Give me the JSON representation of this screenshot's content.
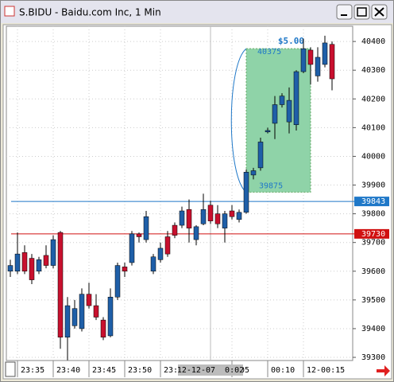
{
  "window": {
    "title": "S.BIDU - Baidu.com Inc, 1 Min"
  },
  "chart_data": {
    "type": "candlestick",
    "open": [
      39600,
      39600,
      39665,
      39645,
      39600,
      39655,
      39620,
      39735,
      39370,
      39410,
      39400,
      39520,
      39480,
      39430,
      39375,
      39510,
      39615,
      39630,
      39730,
      39710,
      39600,
      39640,
      39720,
      39760,
      39760,
      39815,
      39710,
      39765,
      39830,
      39800,
      39750,
      39810,
      39780,
      39805,
      39935,
      39960,
      40085,
      40115,
      40180,
      40120,
      40110,
      40295,
      40370,
      40280,
      40320,
      40390
    ],
    "high": [
      39640,
      39735,
      39690,
      39660,
      39650,
      39690,
      39725,
      39740,
      39510,
      39500,
      39540,
      39560,
      39520,
      39440,
      39540,
      39630,
      39630,
      39740,
      39735,
      39810,
      39660,
      39700,
      39740,
      39770,
      39825,
      39850,
      39760,
      39870,
      39845,
      39830,
      39810,
      39830,
      39815,
      39955,
      39960,
      40065,
      40100,
      40210,
      40220,
      40240,
      40300,
      40410,
      40380,
      40380,
      40420,
      40400
    ],
    "low": [
      39580,
      39590,
      39590,
      39555,
      39590,
      39610,
      39610,
      39330,
      39290,
      39400,
      39390,
      39470,
      39430,
      39360,
      39370,
      39500,
      39580,
      39620,
      39700,
      39700,
      39590,
      39630,
      39650,
      39715,
      39750,
      39700,
      39690,
      39760,
      39765,
      39750,
      39700,
      39780,
      39770,
      39800,
      39920,
      39950,
      40080,
      40060,
      40170,
      40080,
      40090,
      40290,
      40250,
      40260,
      40310,
      40230
    ],
    "close": [
      39620,
      39660,
      39600,
      39570,
      39640,
      39620,
      39710,
      39370,
      39480,
      39470,
      39520,
      39480,
      39440,
      39370,
      39510,
      39620,
      39600,
      39730,
      39720,
      39790,
      39650,
      39680,
      39660,
      39725,
      39810,
      39750,
      39755,
      39815,
      39775,
      39765,
      39800,
      39790,
      39805,
      39945,
      39950,
      40050,
      40090,
      40180,
      40210,
      40195,
      40295,
      40375,
      40320,
      40345,
      40395,
      40270
    ],
    "up_color": "#1f5fa8",
    "down_color": "#c8102e",
    "ylim": [
      39289,
      40453
    ],
    "yticks": [
      39300,
      39400,
      39500,
      39600,
      39700,
      39800,
      39900,
      40000,
      40100,
      40200,
      40300,
      40400
    ],
    "xticks": [
      {
        "value": 1,
        "label": "23:35"
      },
      {
        "value": 6,
        "label": "23:40"
      },
      {
        "value": 11,
        "label": "23:45"
      },
      {
        "value": 16,
        "label": "23:50"
      },
      {
        "value": 21,
        "label": "23:5"
      },
      {
        "value": 31,
        "label": ":05"
      },
      {
        "value": 36,
        "label": "00:10"
      },
      {
        "value": 41,
        "label": "12-00:15"
      }
    ],
    "grid": true,
    "hlines": [
      {
        "value": 39843,
        "color": "#1f78c8"
      },
      {
        "value": 39730,
        "color": "#d01010"
      }
    ],
    "crosshair": {
      "value": 28,
      "label": "12-12-07  0:02"
    },
    "range_box": {
      "start": 33,
      "end": 42,
      "high": 40375,
      "low": 39875,
      "label": "$5.00",
      "color": "#8fd3a8"
    }
  }
}
